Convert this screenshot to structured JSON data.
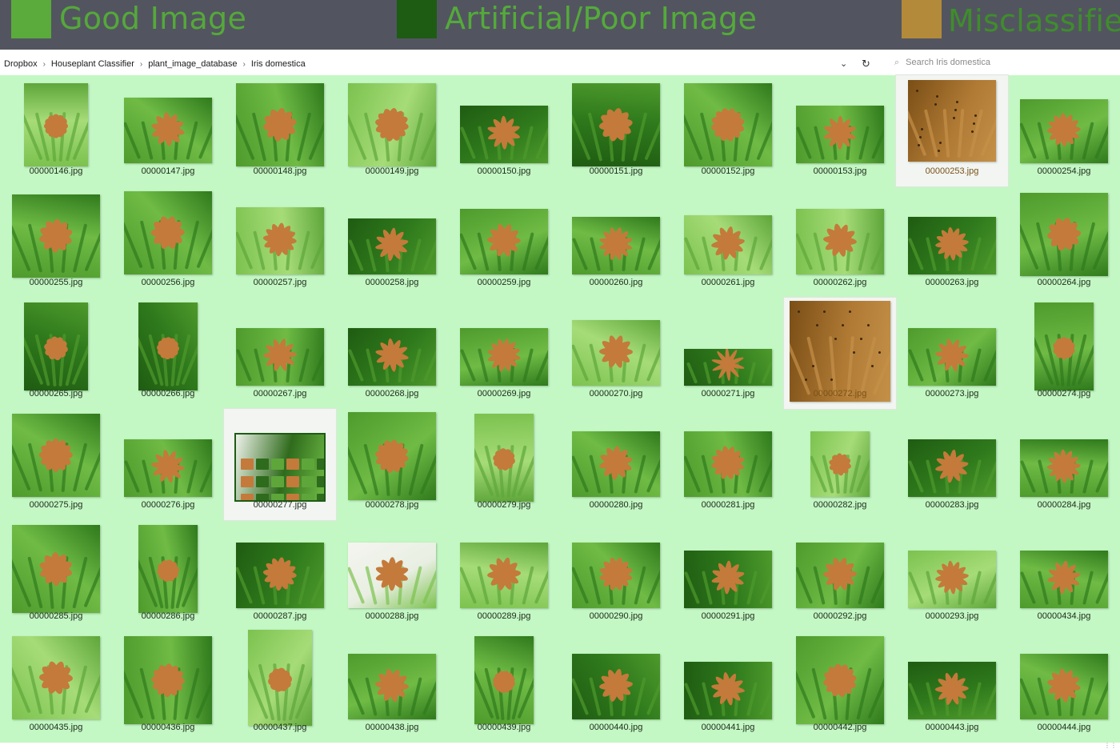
{
  "legend": [
    {
      "label": "Good Image",
      "color": "#5aaa3c",
      "text_color": "#55a83a"
    },
    {
      "label": "Artificial/Poor Image",
      "color": "#1e5c14",
      "text_color": "#54aa3a"
    },
    {
      "label": "Misclassified",
      "color": "#b38a3a",
      "text_color": "#3f8d2c"
    }
  ],
  "breadcrumb": [
    "Dropbox",
    "Houseplant Classifier",
    "plant_image_database",
    "Iris domestica"
  ],
  "breadcrumb_separator": "›",
  "addressbar": {
    "chevron_icon": "⌄",
    "refresh_icon": "↻"
  },
  "search": {
    "placeholder": "Search Iris domestica",
    "icon": "⌕"
  },
  "colors": {
    "good_background": "#c3f7c3",
    "artificial": "#1e5c14",
    "misclassified": "#b38a3a",
    "flower": "#c47a3a"
  },
  "files": [
    {
      "name": "00000146.jpg",
      "status": "good",
      "tone": "light"
    },
    {
      "name": "00000147.jpg",
      "status": "good",
      "tone": "mid"
    },
    {
      "name": "00000148.jpg",
      "status": "good",
      "tone": "mid"
    },
    {
      "name": "00000149.jpg",
      "status": "good",
      "tone": "light"
    },
    {
      "name": "00000150.jpg",
      "status": "good",
      "tone": "dark"
    },
    {
      "name": "00000151.jpg",
      "status": "good",
      "tone": "dark"
    },
    {
      "name": "00000152.jpg",
      "status": "good",
      "tone": "mid"
    },
    {
      "name": "00000153.jpg",
      "status": "good",
      "tone": "mid"
    },
    {
      "name": "00000253.jpg",
      "status": "misclassified",
      "tone": "brown"
    },
    {
      "name": "00000254.jpg",
      "status": "good",
      "tone": "mid"
    },
    {
      "name": "00000255.jpg",
      "status": "good",
      "tone": "mid"
    },
    {
      "name": "00000256.jpg",
      "status": "good",
      "tone": "mid"
    },
    {
      "name": "00000257.jpg",
      "status": "good",
      "tone": "light"
    },
    {
      "name": "00000258.jpg",
      "status": "good",
      "tone": "dark"
    },
    {
      "name": "00000259.jpg",
      "status": "good",
      "tone": "mid"
    },
    {
      "name": "00000260.jpg",
      "status": "good",
      "tone": "mid"
    },
    {
      "name": "00000261.jpg",
      "status": "good",
      "tone": "light"
    },
    {
      "name": "00000262.jpg",
      "status": "good",
      "tone": "light"
    },
    {
      "name": "00000263.jpg",
      "status": "good",
      "tone": "dark"
    },
    {
      "name": "00000264.jpg",
      "status": "good",
      "tone": "mid"
    },
    {
      "name": "00000265.jpg",
      "status": "good",
      "tone": "dark"
    },
    {
      "name": "00000266.jpg",
      "status": "good",
      "tone": "dark"
    },
    {
      "name": "00000267.jpg",
      "status": "good",
      "tone": "mid"
    },
    {
      "name": "00000268.jpg",
      "status": "good",
      "tone": "dark"
    },
    {
      "name": "00000269.jpg",
      "status": "good",
      "tone": "mid"
    },
    {
      "name": "00000270.jpg",
      "status": "good",
      "tone": "light"
    },
    {
      "name": "00000271.jpg",
      "status": "good",
      "tone": "dark"
    },
    {
      "name": "00000272.jpg",
      "status": "misclassified",
      "tone": "brown"
    },
    {
      "name": "00000273.jpg",
      "status": "good",
      "tone": "mid"
    },
    {
      "name": "00000274.jpg",
      "status": "good",
      "tone": "mid"
    },
    {
      "name": "00000275.jpg",
      "status": "good",
      "tone": "mid"
    },
    {
      "name": "00000276.jpg",
      "status": "good",
      "tone": "mid"
    },
    {
      "name": "00000277.jpg",
      "status": "artificial",
      "tone": "collage"
    },
    {
      "name": "00000278.jpg",
      "status": "good",
      "tone": "mid"
    },
    {
      "name": "00000279.jpg",
      "status": "good",
      "tone": "light"
    },
    {
      "name": "00000280.jpg",
      "status": "good",
      "tone": "mid"
    },
    {
      "name": "00000281.jpg",
      "status": "good",
      "tone": "mid"
    },
    {
      "name": "00000282.jpg",
      "status": "good",
      "tone": "light"
    },
    {
      "name": "00000283.jpg",
      "status": "good",
      "tone": "dark"
    },
    {
      "name": "00000284.jpg",
      "status": "good",
      "tone": "mid"
    },
    {
      "name": "00000285.jpg",
      "status": "good",
      "tone": "mid"
    },
    {
      "name": "00000286.jpg",
      "status": "good",
      "tone": "mid"
    },
    {
      "name": "00000287.jpg",
      "status": "good",
      "tone": "dark"
    },
    {
      "name": "00000288.jpg",
      "status": "good",
      "tone": "white"
    },
    {
      "name": "00000289.jpg",
      "status": "good",
      "tone": "light"
    },
    {
      "name": "00000290.jpg",
      "status": "good",
      "tone": "mid"
    },
    {
      "name": "00000291.jpg",
      "status": "good",
      "tone": "dark"
    },
    {
      "name": "00000292.jpg",
      "status": "good",
      "tone": "mid"
    },
    {
      "name": "00000293.jpg",
      "status": "good",
      "tone": "light"
    },
    {
      "name": "00000434.jpg",
      "status": "good",
      "tone": "mid"
    },
    {
      "name": "00000435.jpg",
      "status": "good",
      "tone": "light"
    },
    {
      "name": "00000436.jpg",
      "status": "good",
      "tone": "mid"
    },
    {
      "name": "00000437.jpg",
      "status": "good",
      "tone": "light"
    },
    {
      "name": "00000438.jpg",
      "status": "good",
      "tone": "mid"
    },
    {
      "name": "00000439.jpg",
      "status": "good",
      "tone": "mid"
    },
    {
      "name": "00000440.jpg",
      "status": "good",
      "tone": "dark"
    },
    {
      "name": "00000441.jpg",
      "status": "good",
      "tone": "dark"
    },
    {
      "name": "00000442.jpg",
      "status": "good",
      "tone": "mid"
    },
    {
      "name": "00000443.jpg",
      "status": "good",
      "tone": "dark"
    },
    {
      "name": "00000444.jpg",
      "status": "good",
      "tone": "mid"
    }
  ]
}
